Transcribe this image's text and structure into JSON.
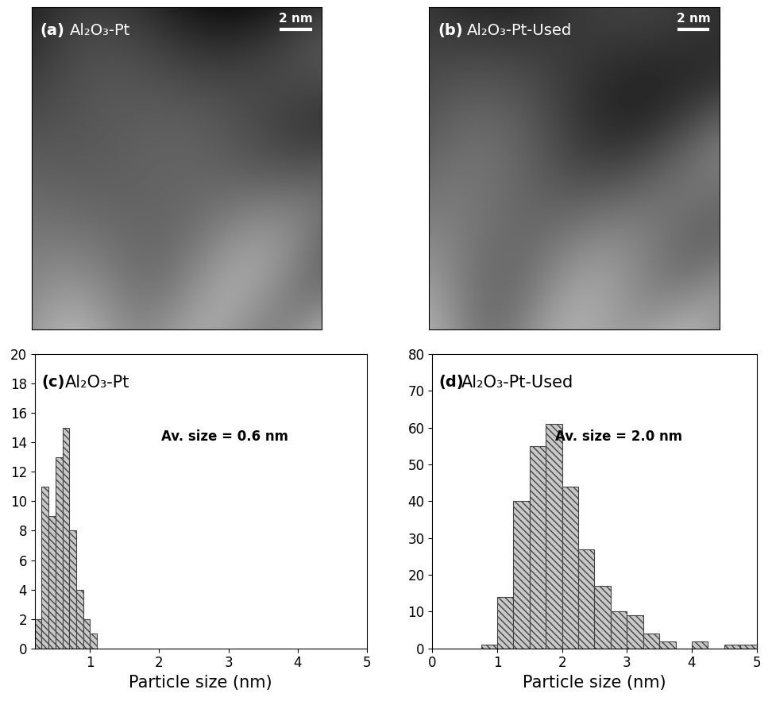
{
  "images": [
    {
      "panel": "(a)",
      "label": "Al₂O₃-Pt",
      "scale_bar": "2 nm"
    },
    {
      "panel": "(b)",
      "label": "Al₂O₃-Pt-Used",
      "scale_bar": "2 nm"
    }
  ],
  "chart_data": [
    {
      "type": "histogram",
      "panel": "(c)",
      "title": "Al₂O₃-Pt",
      "annotation": "Av. size = 0.6 nm",
      "x_label": "Particle size (nm)",
      "bins": [
        0.2,
        0.3,
        0.4,
        0.5,
        0.6,
        0.7,
        0.8,
        0.9,
        1.0,
        1.1
      ],
      "counts": [
        2,
        11,
        9,
        13,
        15,
        8,
        4,
        2,
        1
      ],
      "color": "#c8c8c8",
      "xlim": [
        0.2,
        5
      ],
      "xticks": [
        1,
        2,
        3,
        4,
        5
      ],
      "ylim": [
        0,
        20
      ],
      "yticks": [
        0,
        2,
        4,
        6,
        8,
        10,
        12,
        14,
        16,
        18,
        20
      ]
    },
    {
      "type": "histogram",
      "panel": "(d)",
      "title": "Al₂O₃-Pt-Used",
      "annotation": "Av. size = 2.0 nm",
      "x_label": "Particle size (nm)",
      "bins": [
        0.75,
        1.0,
        1.25,
        1.5,
        1.75,
        2.0,
        2.25,
        2.5,
        2.75,
        3.0,
        3.25,
        3.5,
        3.75,
        4.0,
        4.25,
        4.5,
        4.75,
        5.0
      ],
      "counts": [
        1,
        14,
        40,
        55,
        61,
        44,
        27,
        17,
        10,
        9,
        4,
        2,
        0,
        2,
        0,
        1,
        1
      ],
      "color": "#c8c8c8",
      "xlim": [
        0,
        5
      ],
      "xticks": [
        0,
        1,
        2,
        3,
        4,
        5
      ],
      "ylim": [
        0,
        80
      ],
      "yticks": [
        0,
        10,
        20,
        30,
        40,
        50,
        60,
        70,
        80
      ]
    }
  ]
}
